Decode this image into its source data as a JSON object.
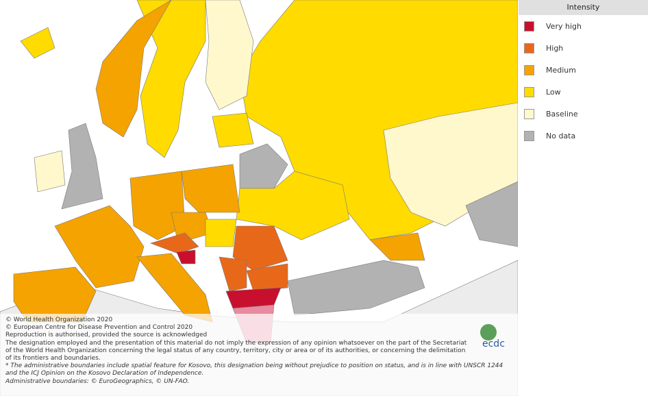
{
  "legend": {
    "title": "Intensity",
    "items": [
      {
        "label": "Very high",
        "color": "#c8102e"
      },
      {
        "label": "High",
        "color": "#e8681a"
      },
      {
        "label": "Medium",
        "color": "#f5a300"
      },
      {
        "label": "Low",
        "color": "#ffdb00"
      },
      {
        "label": "Baseline",
        "color": "#fff8cc"
      },
      {
        "label": "No data",
        "color": "#b2b2b2"
      }
    ]
  },
  "attribution": {
    "lines": [
      "© World Health Organization 2020",
      "© European Centre for Disease Prevention and Control 2020",
      "Reproduction is authorised, provided the source is acknowledged",
      "The designation employed and the presentation of this material do not imply the expression of any opinion whatsoever on the part of the Secretariat",
      "of the World Health Organization concerning the legal status of any country, territory, city or area or of its authorities, or concerning the delimitation",
      "of its frontiers and boundaries."
    ],
    "note_lines": [
      "* The administrative boundaries include spatial feature for Kosovo, this designation being without prejudice to position on status, and is in line with UNSCR 1244",
      "and the ICJ Opinion on the Kosovo Declaration of Independence.",
      "Administrative boundaries: © EuroGeographics, © UN-FAO."
    ]
  },
  "logo": "ecdc"
}
